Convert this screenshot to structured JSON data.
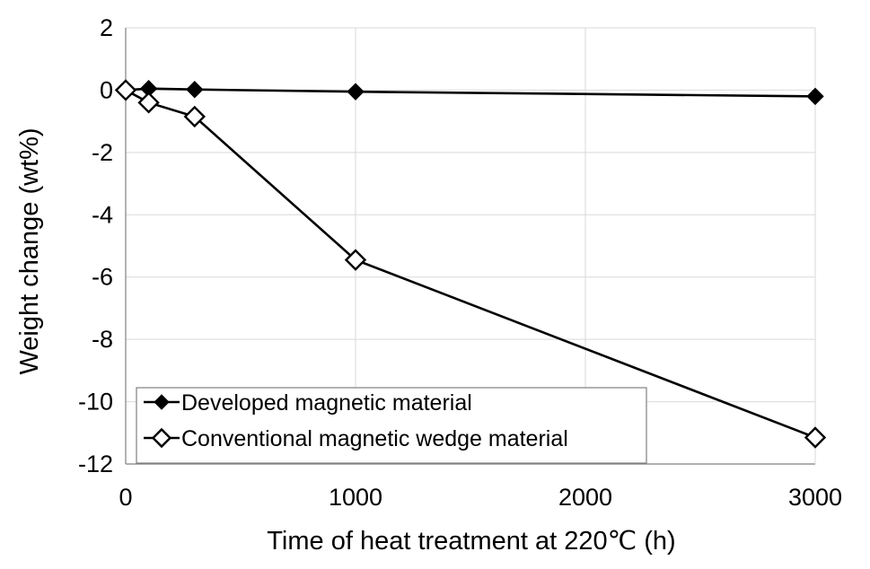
{
  "chart_data": {
    "type": "line",
    "title": "",
    "xlabel": "Time of heat treatment at 220℃ (h)",
    "ylabel": "Weight change (wt%)",
    "xlim": [
      0,
      3000
    ],
    "ylim": [
      -12,
      2
    ],
    "xticks": [
      0,
      1000,
      2000,
      3000
    ],
    "yticks": [
      2,
      0,
      -2,
      -4,
      -6,
      -8,
      -10,
      -12
    ],
    "grid": true,
    "legend_position": "bottom-left",
    "series": [
      {
        "name": "Developed magnetic material",
        "marker": "filled-diamond",
        "color": "#000000",
        "x": [
          0,
          100,
          300,
          1000,
          3000
        ],
        "y": [
          0.0,
          0.05,
          0.02,
          -0.05,
          -0.2
        ]
      },
      {
        "name": "Conventional magnetic wedge material",
        "marker": "open-diamond",
        "color": "#000000",
        "x": [
          0,
          100,
          300,
          1000,
          3000
        ],
        "y": [
          0.0,
          -0.4,
          -0.85,
          -5.45,
          -11.15
        ]
      }
    ]
  }
}
